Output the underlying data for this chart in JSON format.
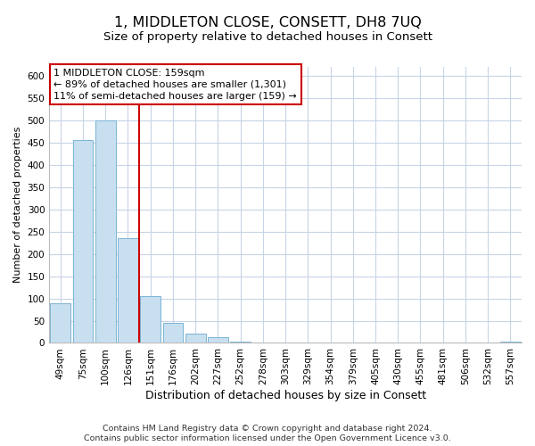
{
  "title": "1, MIDDLETON CLOSE, CONSETT, DH8 7UQ",
  "subtitle": "Size of property relative to detached houses in Consett",
  "xlabel": "Distribution of detached houses by size in Consett",
  "ylabel": "Number of detached properties",
  "bar_labels": [
    "49sqm",
    "75sqm",
    "100sqm",
    "126sqm",
    "151sqm",
    "176sqm",
    "202sqm",
    "227sqm",
    "252sqm",
    "278sqm",
    "303sqm",
    "329sqm",
    "354sqm",
    "379sqm",
    "405sqm",
    "430sqm",
    "455sqm",
    "481sqm",
    "506sqm",
    "532sqm",
    "557sqm"
  ],
  "bar_values": [
    90,
    455,
    500,
    235,
    105,
    45,
    20,
    12,
    2,
    0,
    0,
    0,
    0,
    0,
    0,
    0,
    0,
    0,
    0,
    0,
    2
  ],
  "bar_color": "#c8dff0",
  "bar_edge_color": "#7ab4d4",
  "vline_color": "#cc0000",
  "vline_pos": 3.5,
  "annotation_box_text": "1 MIDDLETON CLOSE: 159sqm\n← 89% of detached houses are smaller (1,301)\n11% of semi-detached houses are larger (159) →",
  "annotation_box_color": "#ffffff",
  "annotation_box_edge": "#cc0000",
  "ylim": [
    0,
    620
  ],
  "yticks": [
    0,
    50,
    100,
    150,
    200,
    250,
    300,
    350,
    400,
    450,
    500,
    550,
    600
  ],
  "footer_line1": "Contains HM Land Registry data © Crown copyright and database right 2024.",
  "footer_line2": "Contains public sector information licensed under the Open Government Licence v3.0.",
  "background_color": "#ffffff",
  "grid_color": "#c8d4e8",
  "title_fontsize": 11.5,
  "subtitle_fontsize": 9.5,
  "xlabel_fontsize": 9,
  "ylabel_fontsize": 8,
  "tick_fontsize": 7.5,
  "footer_fontsize": 6.8,
  "annotation_fontsize": 8
}
